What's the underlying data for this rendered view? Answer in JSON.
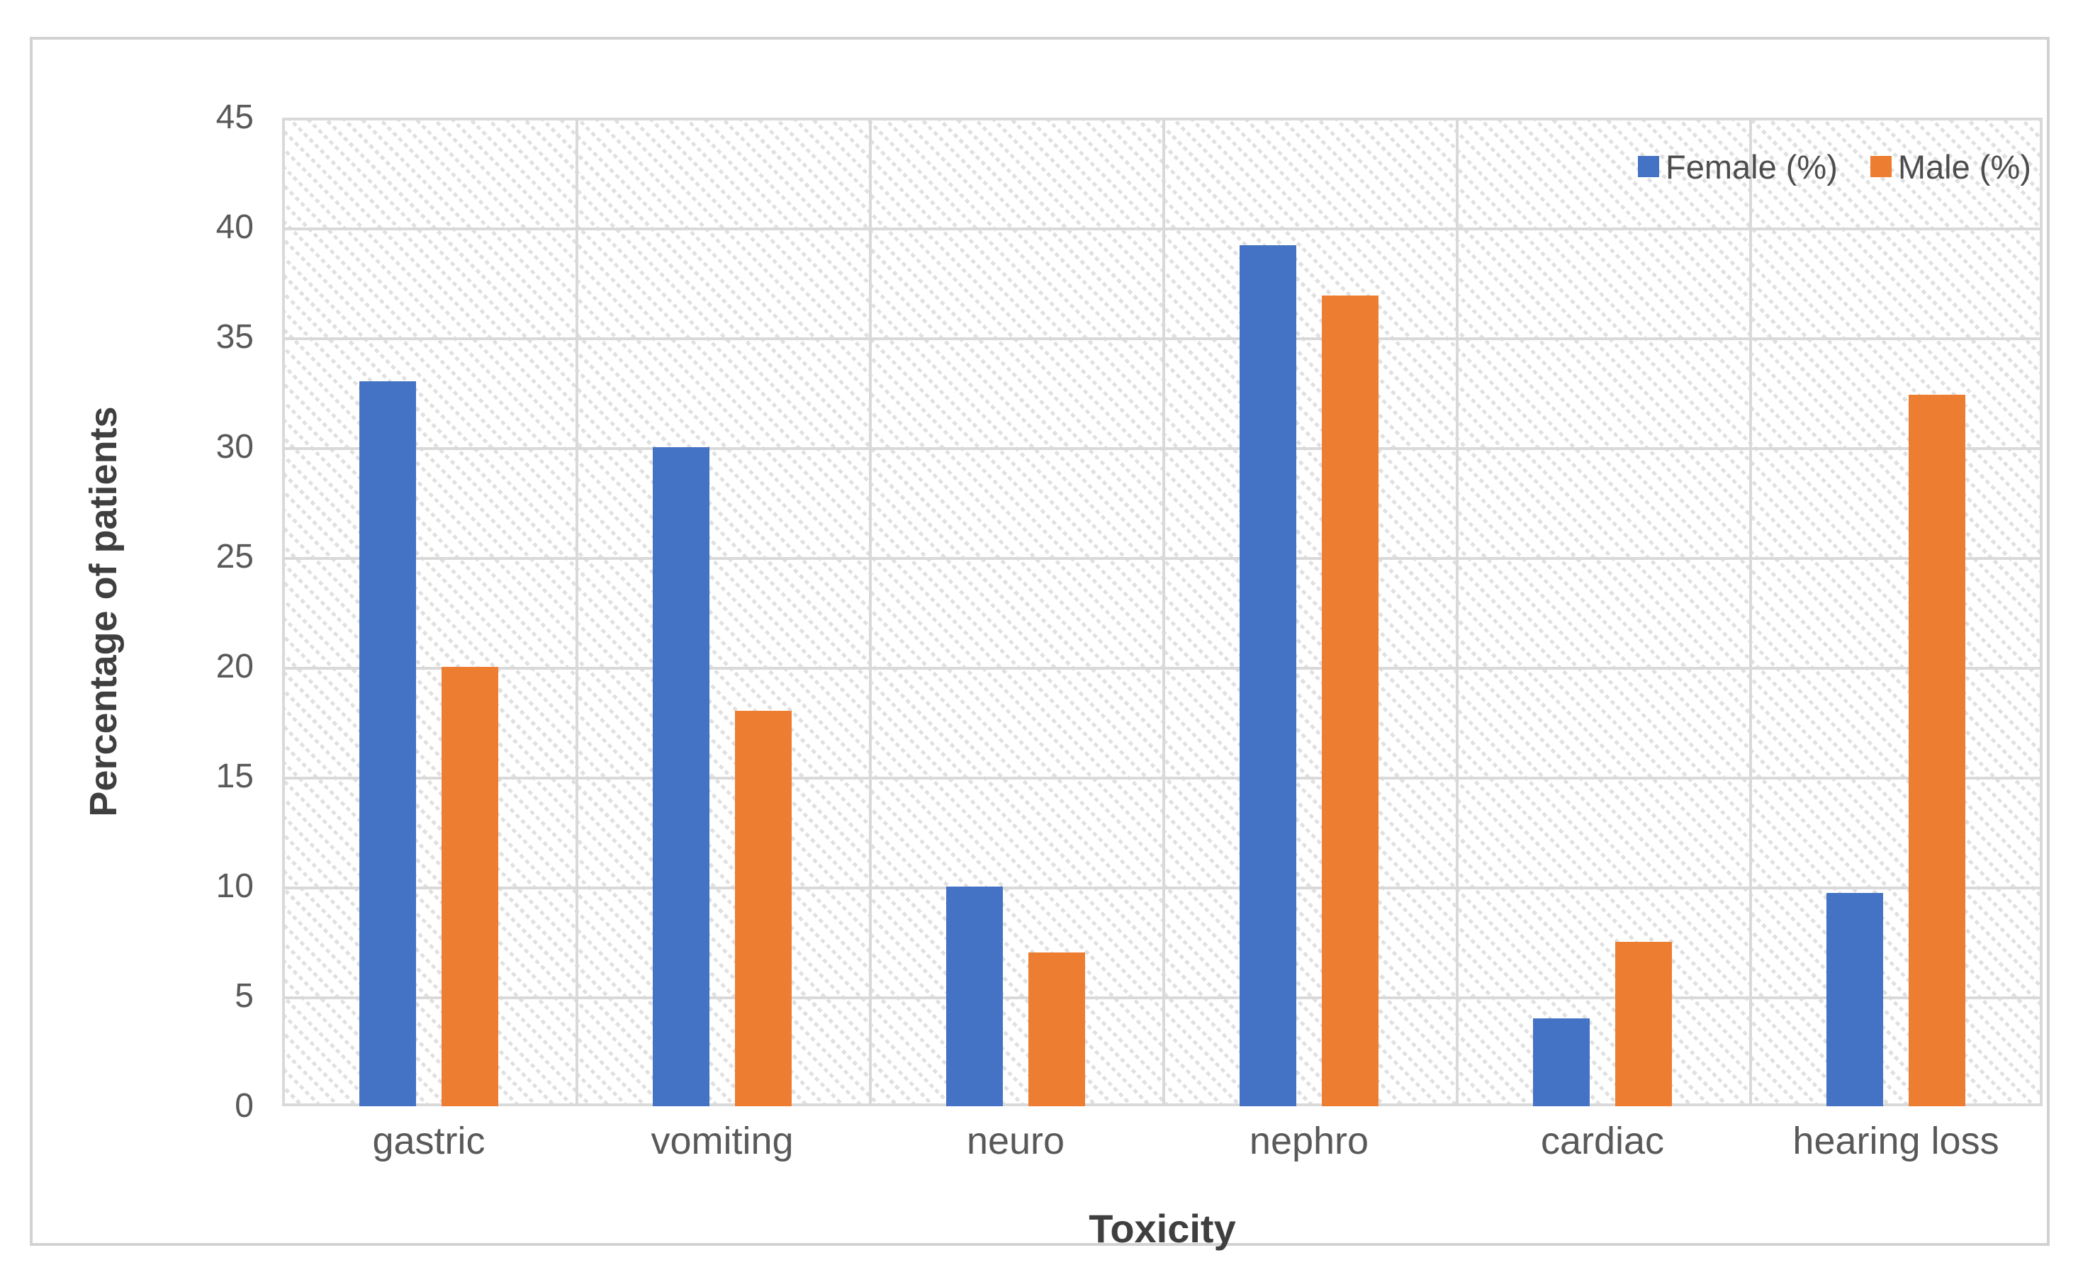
{
  "chart_data": {
    "type": "bar",
    "title": "",
    "categories": [
      "gastric",
      "vomiting",
      "neuro",
      "nephro",
      "cardiac",
      "hearing loss"
    ],
    "series": [
      {
        "name": "Female (%)",
        "color": "#4472C4",
        "values": [
          33,
          30,
          10,
          39.2,
          4,
          9.7
        ]
      },
      {
        "name": "Male (%)",
        "color": "#ED7D31",
        "values": [
          20,
          18,
          7,
          36.9,
          7.5,
          32.4
        ]
      }
    ],
    "xlabel": "Toxicity",
    "ylabel": "Percentage of patients",
    "ylim": [
      0,
      45
    ],
    "ytick_step": 5,
    "y_tick_labels": [
      "45",
      "40",
      "35",
      "30",
      "25",
      "20",
      "15",
      "10",
      "5",
      "0"
    ],
    "grid": "horizontal and vertical major gridlines on",
    "legend_position": "top-right inside plot",
    "plot_background": "light diagonal dashed hatch pattern"
  },
  "colors": {
    "female_bar": "#4472C4",
    "male_bar": "#ED7D31",
    "gridline": "#d9d9d9",
    "hatch_stripe": "#e0e0e0",
    "frame_border": "#d2d2d2",
    "tick_text": "#595959",
    "axis_title_text": "#3f3f3f"
  }
}
